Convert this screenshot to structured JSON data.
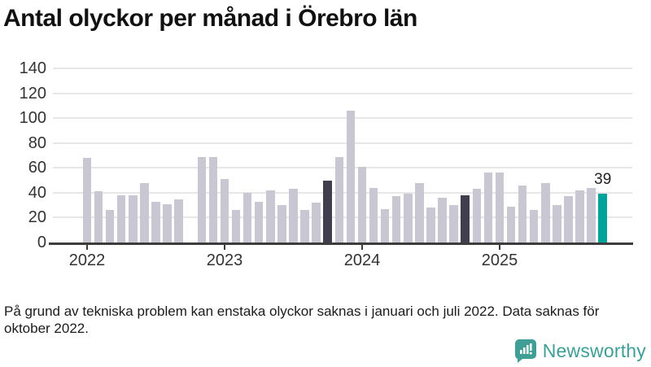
{
  "title": "Antal olyckor per månad i Örebro län",
  "footnote_lines": [
    "På grund av tekniska problem kan enstaka olyckor saknas i januari och juli 2022. Data saknas för",
    "oktober 2022."
  ],
  "branding": {
    "logo_text": "Newsworthy",
    "logo_icon": "newsworthy-speech-bubble-bar-chart-icon",
    "color": "#3f9e96"
  },
  "colors": {
    "bar": "#c9c8d2",
    "bar_highlight_dark": "#413f4e",
    "bar_highlight_teal": "#00a39a",
    "gridline": "#e7e7e7",
    "axis": "#3d3d3d",
    "tick_label": "#333333",
    "title_text": "#111111",
    "annotation_text": "#222222"
  },
  "chart_data": {
    "type": "bar",
    "title": "Antal olyckor per månad i Örebro län",
    "xlabel": "",
    "ylabel": "",
    "ylim": [
      0,
      140
    ],
    "yticks": [
      0,
      20,
      40,
      60,
      80,
      100,
      120,
      140
    ],
    "grid": true,
    "legend": false,
    "x": [
      "2022-01",
      "2022-02",
      "2022-03",
      "2022-04",
      "2022-05",
      "2022-06",
      "2022-07",
      "2022-08",
      "2022-09",
      "2022-10",
      "2022-11",
      "2022-12",
      "2023-01",
      "2023-02",
      "2023-03",
      "2023-04",
      "2023-05",
      "2023-06",
      "2023-07",
      "2023-08",
      "2023-09",
      "2023-10",
      "2023-11",
      "2023-12",
      "2024-01",
      "2024-02",
      "2024-03",
      "2024-04",
      "2024-05",
      "2024-06",
      "2024-07",
      "2024-08",
      "2024-09",
      "2024-10",
      "2024-11",
      "2024-12",
      "2025-01",
      "2025-02",
      "2025-03",
      "2025-04",
      "2025-05",
      "2025-06",
      "2025-07",
      "2025-08",
      "2025-09",
      "2025-10"
    ],
    "values": [
      68,
      41,
      26,
      38,
      38,
      48,
      33,
      31,
      35,
      null,
      69,
      69,
      51,
      26,
      40,
      33,
      42,
      30,
      43,
      26,
      32,
      50,
      69,
      106,
      61,
      44,
      27,
      37,
      39,
      48,
      28,
      36,
      30,
      38,
      43,
      56,
      56,
      29,
      46,
      26,
      48,
      30,
      37,
      42,
      44,
      39
    ],
    "missing_months": [
      "2022-10"
    ],
    "highlight_dark_months": [
      "2023-10",
      "2024-10"
    ],
    "highlight_teal_month": "2025-10",
    "annotation": {
      "month": "2025-10",
      "label": "39"
    },
    "year_ticks": [
      "2022",
      "2023",
      "2024",
      "2025"
    ]
  }
}
